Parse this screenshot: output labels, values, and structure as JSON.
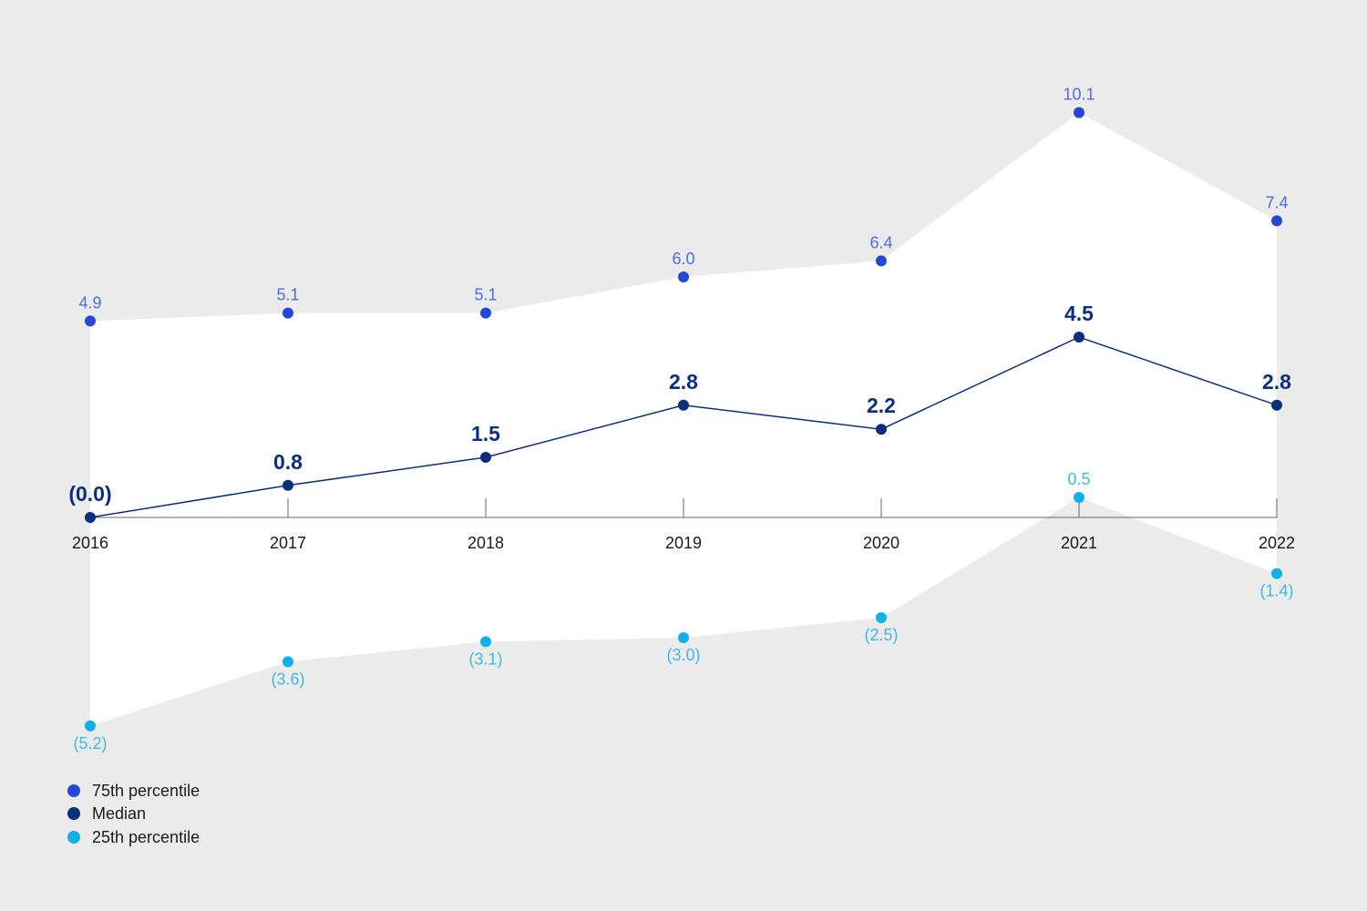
{
  "chart_data": {
    "type": "line",
    "title": "",
    "xlabel": "",
    "ylabel": "",
    "categories": [
      "2016",
      "2017",
      "2018",
      "2019",
      "2020",
      "2021",
      "2022"
    ],
    "series": [
      {
        "name": "75th percentile",
        "values": [
          4.9,
          5.1,
          5.1,
          6.0,
          6.4,
          10.1,
          7.4
        ],
        "labels": [
          "4.9",
          "5.1",
          "5.1",
          "6.0",
          "6.4",
          "10.1",
          "7.4"
        ]
      },
      {
        "name": "Median",
        "values": [
          0.0,
          0.8,
          1.5,
          2.8,
          2.2,
          4.5,
          2.8
        ],
        "labels": [
          "(0.0)",
          "0.8",
          "1.5",
          "2.8",
          "2.2",
          "4.5",
          "2.8"
        ]
      },
      {
        "name": "25th percentile",
        "values": [
          -5.2,
          -3.6,
          -3.1,
          -3.0,
          -2.5,
          0.5,
          -1.4
        ],
        "labels": [
          "(5.2)",
          "(3.6)",
          "(3.1)",
          "(3.0)",
          "(2.5)",
          "0.5",
          "(1.4)"
        ]
      }
    ],
    "ylim": [
      -5.2,
      10.1
    ],
    "grid": false,
    "legend_position": "bottom-left",
    "colors": {
      "p75": "#2447d6",
      "median": "#0b2f7f",
      "p25": "#12b0ea",
      "p75_label": "#4a6ee0",
      "p25_label": "#3db8ea",
      "band": "#ffffff",
      "background": "#ebebeb",
      "axis": "#666666"
    }
  }
}
